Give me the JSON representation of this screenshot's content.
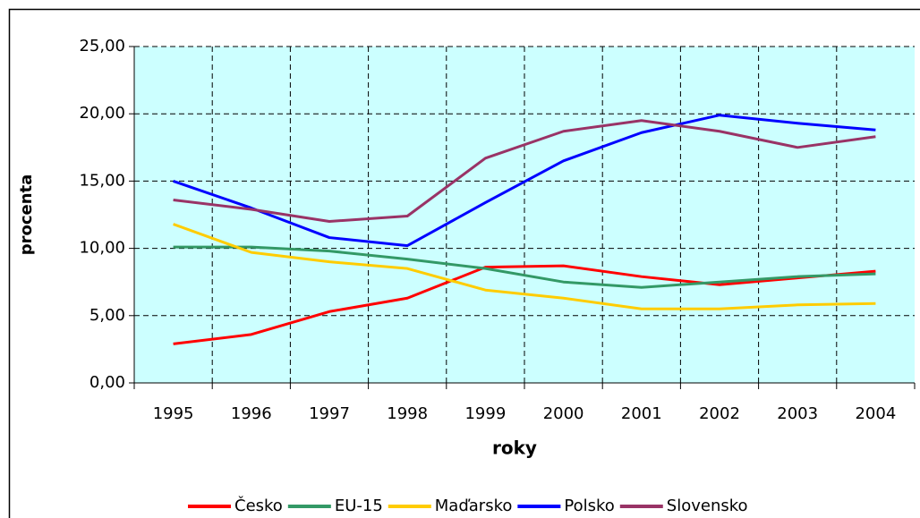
{
  "chart_data": {
    "type": "line",
    "x_label": "roky",
    "y_label": "procenta",
    "categories": [
      "1995",
      "1996",
      "1997",
      "1998",
      "1999",
      "2000",
      "2001",
      "2002",
      "2003",
      "2004"
    ],
    "series": [
      {
        "name": "Česko",
        "color": "#ff0000",
        "values": [
          2.9,
          3.6,
          5.3,
          6.3,
          8.6,
          8.7,
          7.9,
          7.3,
          7.8,
          8.3
        ]
      },
      {
        "name": "EU-15",
        "color": "#339966",
        "values": [
          10.1,
          10.1,
          9.8,
          9.2,
          8.5,
          7.5,
          7.1,
          7.5,
          7.9,
          8.1
        ]
      },
      {
        "name": "Maďarsko",
        "color": "#ffcc00",
        "values": [
          11.8,
          9.7,
          9.0,
          8.5,
          6.9,
          6.3,
          5.5,
          5.5,
          5.8,
          5.9
        ]
      },
      {
        "name": "Polsko",
        "color": "#0000ff",
        "values": [
          15.0,
          13.0,
          10.8,
          10.2,
          13.4,
          16.5,
          18.6,
          19.9,
          19.3,
          18.8
        ]
      },
      {
        "name": "Slovensko",
        "color": "#993366",
        "values": [
          13.6,
          12.9,
          12.0,
          12.4,
          16.7,
          18.7,
          19.5,
          18.7,
          17.5,
          18.3
        ]
      }
    ],
    "ylim": [
      0,
      25
    ],
    "yticks": [
      {
        "value": 0,
        "label": "0,00"
      },
      {
        "value": 5,
        "label": "5,00"
      },
      {
        "value": 10,
        "label": "10,00"
      },
      {
        "value": 15,
        "label": "15,00"
      },
      {
        "value": 20,
        "label": "20,00"
      },
      {
        "value": 25,
        "label": "25,00"
      }
    ],
    "grid": true,
    "legend": "bottom",
    "background": "#ccffff"
  }
}
